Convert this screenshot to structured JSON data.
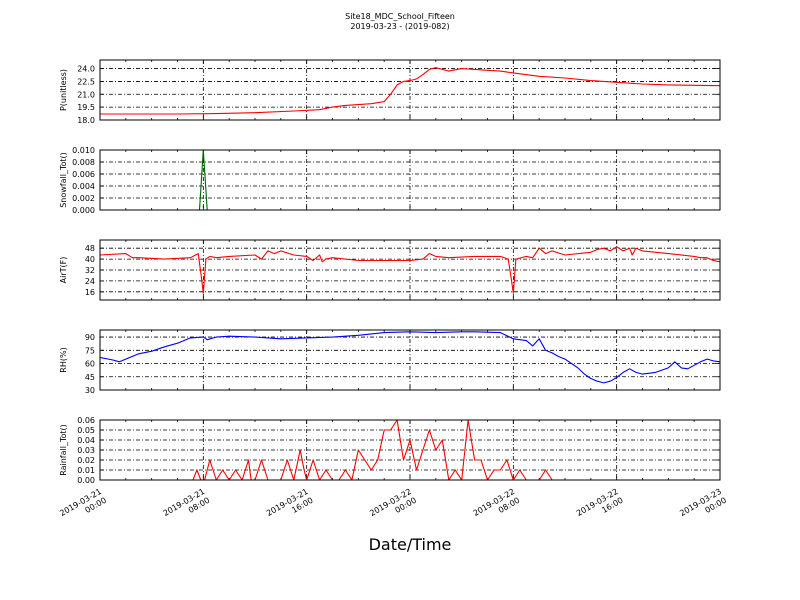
{
  "title_line1": "Site18_MDC_School_Fifteen",
  "title_line2": "2019-03-23 - (2019-082)",
  "xlabel": "Date/Time",
  "x_ticks": [
    {
      "t": 0,
      "line1": "2019-03-21",
      "line2": "00:00"
    },
    {
      "t": 8,
      "line1": "2019-03-21",
      "line2": "08:00"
    },
    {
      "t": 16,
      "line1": "2019-03-21",
      "line2": "16:00"
    },
    {
      "t": 24,
      "line1": "2019-03-22",
      "line2": "00:00"
    },
    {
      "t": 32,
      "line1": "2019-03-22",
      "line2": "08:00"
    },
    {
      "t": 40,
      "line1": "2019-03-22",
      "line2": "16:00"
    },
    {
      "t": 48,
      "line1": "2019-03-23",
      "line2": "00:00"
    }
  ],
  "chart_data": [
    {
      "type": "line",
      "ylabel": "P(unitless)",
      "color": "#ff0000",
      "ylim": [
        18.0,
        25.0
      ],
      "yticks": [
        "18.0",
        "19.5",
        "21.0",
        "22.5",
        "24.0"
      ],
      "x": [
        0,
        6,
        9,
        12,
        15,
        17,
        18,
        19,
        20,
        21,
        22,
        22.5,
        23,
        23.5,
        24,
        24.5,
        25,
        25.5,
        26,
        27,
        28,
        29,
        30,
        31,
        32,
        34,
        36,
        38,
        40,
        42,
        44,
        46,
        48
      ],
      "values": [
        18.7,
        18.7,
        18.75,
        18.85,
        19.05,
        19.2,
        19.5,
        19.7,
        19.8,
        19.9,
        20.15,
        21.0,
        22.1,
        22.5,
        22.6,
        22.8,
        23.3,
        23.9,
        24.1,
        23.7,
        24.0,
        23.9,
        23.8,
        23.7,
        23.5,
        23.1,
        22.9,
        22.6,
        22.4,
        22.2,
        22.1,
        22.05,
        22.0
      ]
    },
    {
      "type": "line",
      "ylabel": "Snowfall_Tot()",
      "color": "#006400",
      "ylim": [
        0.0,
        0.01
      ],
      "yticks": [
        "0.000",
        "0.002",
        "0.004",
        "0.006",
        "0.008",
        "0.010"
      ],
      "x": [
        0,
        7.7,
        8.0,
        8.3,
        48
      ],
      "values": [
        0,
        0,
        0.01,
        0,
        0
      ]
    },
    {
      "type": "line",
      "ylabel": "AirT(F)",
      "color": "#ff0000",
      "ylim": [
        10,
        54
      ],
      "yticks": [
        "16",
        "24",
        "32",
        "40",
        "48"
      ],
      "x": [
        0,
        2,
        2.5,
        3,
        5,
        7,
        7.6,
        7.8,
        8.0,
        8.2,
        8.5,
        9,
        10,
        12,
        12.5,
        13,
        13.5,
        14,
        15,
        16,
        16.5,
        17,
        17.2,
        17.5,
        18,
        20,
        24,
        25,
        25.5,
        26,
        27,
        29,
        31,
        31.6,
        31.8,
        32.0,
        32.2,
        33,
        33.5,
        34,
        34.5,
        35,
        36,
        38,
        38.5,
        39,
        39.5,
        40,
        40.5,
        41,
        41.2,
        41.5,
        42,
        44,
        46,
        46.5,
        47,
        47.5,
        48
      ],
      "values": [
        43,
        44,
        41,
        41,
        40,
        41,
        44,
        30,
        15,
        40,
        42,
        41,
        42,
        43,
        40,
        46,
        44,
        46,
        43,
        42,
        39,
        43,
        38,
        40,
        41,
        39,
        39,
        40,
        44,
        42,
        41,
        42,
        42,
        40,
        28,
        15,
        40,
        42,
        41,
        48,
        44,
        46,
        43,
        45,
        47,
        48,
        46,
        49,
        46,
        48,
        43,
        48,
        46,
        44,
        42,
        41,
        41,
        39,
        38
      ]
    },
    {
      "type": "line",
      "ylabel": "RH(%)",
      "color": "#0000ff",
      "ylim": [
        30,
        98
      ],
      "yticks": [
        "30",
        "45",
        "60",
        "75",
        "90"
      ],
      "x": [
        0,
        1,
        1.5,
        2,
        3,
        4,
        5,
        6,
        7,
        8,
        8.3,
        9,
        10,
        12,
        14,
        16,
        18,
        20,
        22,
        24,
        26,
        28,
        29,
        31,
        32,
        33,
        33.5,
        34,
        34.5,
        35,
        35.5,
        36,
        36.5,
        37,
        37.5,
        38,
        38.5,
        39,
        39.5,
        40,
        40.5,
        41,
        41.5,
        42,
        43,
        44,
        44.5,
        45,
        45.5,
        46,
        46.5,
        47,
        47.5,
        48
      ],
      "values": [
        67,
        64,
        62,
        65,
        71,
        74,
        79,
        83,
        89,
        90,
        87,
        90,
        91,
        90,
        88,
        89,
        90,
        92,
        95,
        96,
        95,
        96,
        96,
        95,
        88,
        86,
        80,
        88,
        75,
        72,
        68,
        65,
        60,
        55,
        48,
        43,
        40,
        38,
        40,
        44,
        50,
        54,
        50,
        48,
        50,
        55,
        62,
        55,
        54,
        58,
        62,
        65,
        63,
        62
      ]
    },
    {
      "type": "line",
      "ylabel": "Rainfall_Tot()",
      "color": "#ff0000",
      "ylim": [
        0,
        0.06
      ],
      "yticks": [
        "0.00",
        "0.01",
        "0.02",
        "0.03",
        "0.04",
        "0.05",
        "0.06"
      ],
      "x": [
        0,
        7.2,
        7.5,
        7.8,
        8.1,
        8.5,
        9,
        9.5,
        10,
        10.5,
        11,
        11.5,
        11.7,
        12,
        12.5,
        13,
        14,
        14.5,
        15,
        15.5,
        15.8,
        16,
        16.5,
        17,
        17.5,
        18,
        18.5,
        19,
        19.5,
        20,
        20.5,
        21,
        21.5,
        22,
        22.5,
        23,
        23.5,
        24,
        24.5,
        25,
        25.5,
        26,
        26.5,
        27,
        27.5,
        28,
        28.5,
        29,
        29.5,
        30,
        30.5,
        31,
        31.5,
        32,
        32.5,
        33,
        34,
        34.5,
        35,
        48
      ],
      "values": [
        0,
        0,
        0.01,
        0,
        0,
        0.02,
        0,
        0.01,
        0,
        0.01,
        0,
        0.02,
        0,
        0,
        0.02,
        0,
        0,
        0.02,
        0,
        0.03,
        0.01,
        0,
        0.02,
        0,
        0.01,
        0,
        0,
        0.01,
        0,
        0.03,
        0.02,
        0.01,
        0.02,
        0.05,
        0.05,
        0.06,
        0.02,
        0.04,
        0.01,
        0.03,
        0.05,
        0.03,
        0.04,
        0,
        0.01,
        0,
        0.06,
        0.02,
        0.02,
        0,
        0.01,
        0.01,
        0.02,
        0,
        0.01,
        0,
        0,
        0.01,
        0,
        0
      ]
    }
  ]
}
